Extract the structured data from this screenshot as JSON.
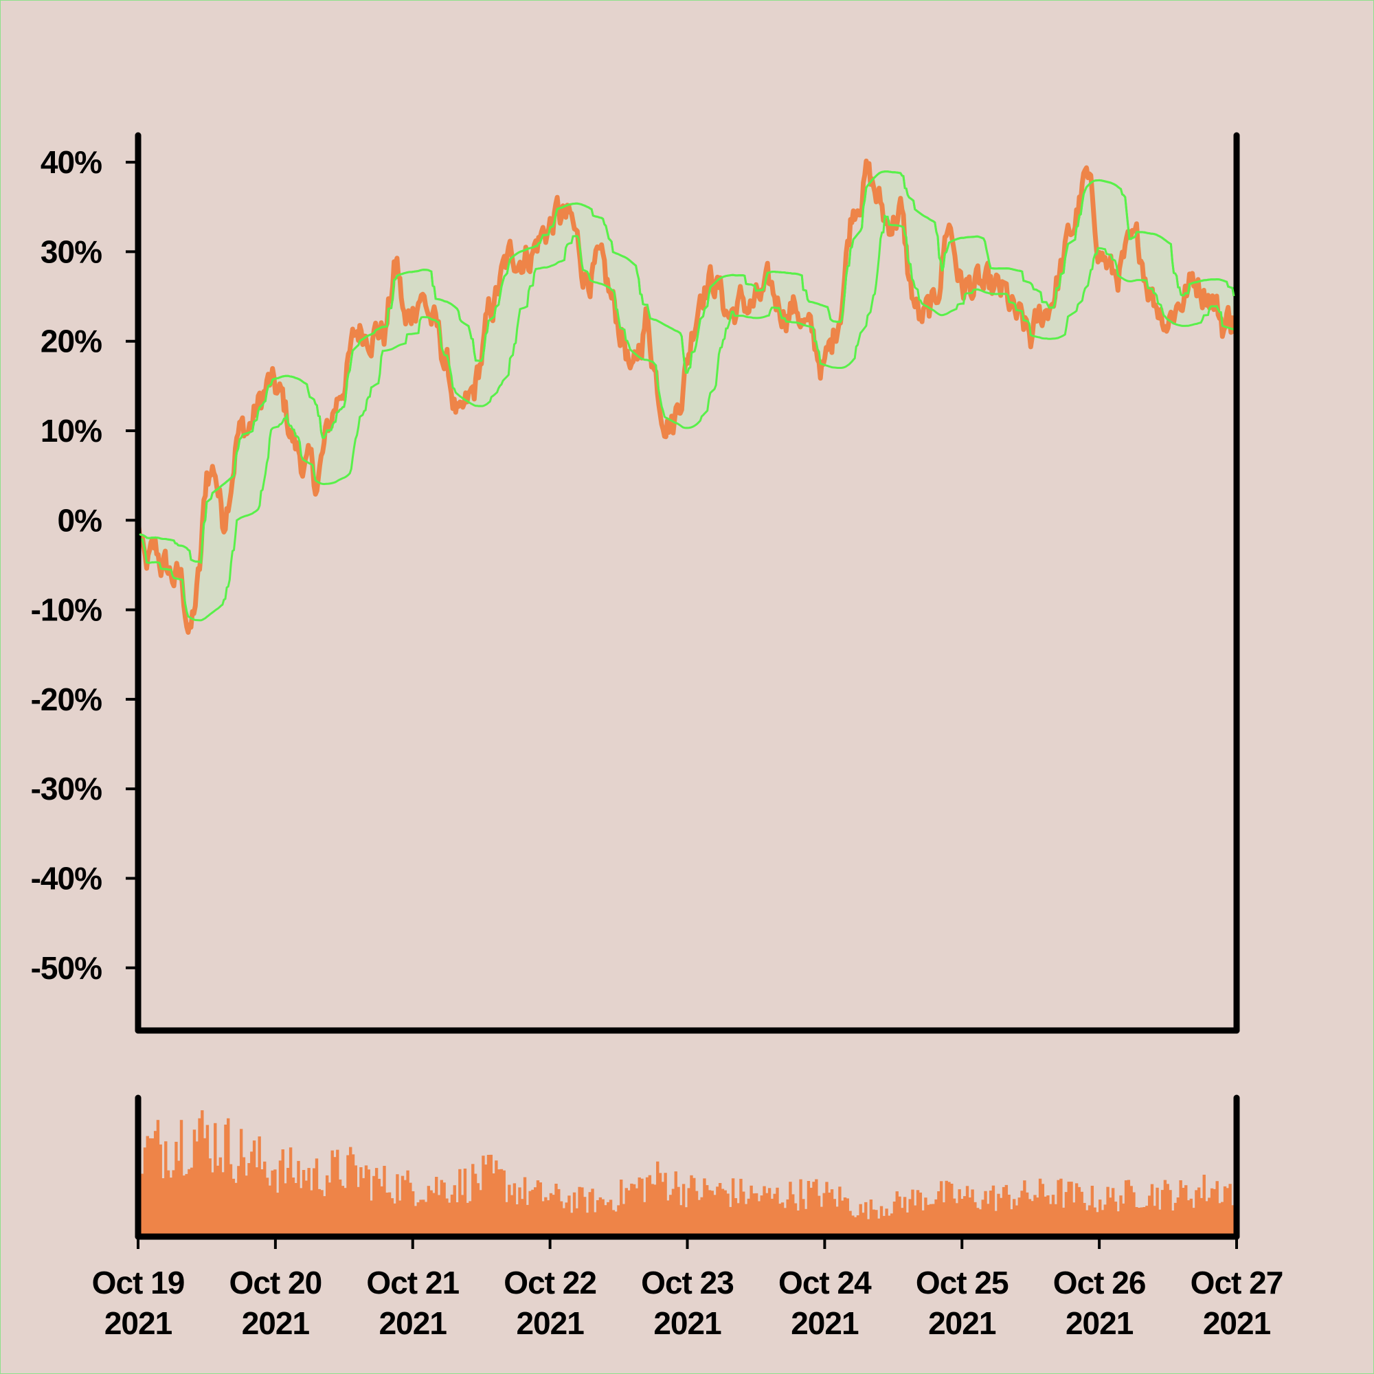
{
  "chart_data": {
    "type": "line",
    "title": "",
    "xlabel": "",
    "ylabel": "",
    "ylim": [
      -57,
      43
    ],
    "y_ticks": [
      "40%",
      "30%",
      "20%",
      "10%",
      "0%",
      "-10%",
      "-20%",
      "-30%",
      "-40%",
      "-50%"
    ],
    "y_tick_values": [
      40,
      30,
      20,
      10,
      0,
      -10,
      -20,
      -30,
      -40,
      -50
    ],
    "x_ticks": [
      {
        "line1": "Oct 19",
        "line2": "2021"
      },
      {
        "line1": "Oct 20",
        "line2": "2021"
      },
      {
        "line1": "Oct 21",
        "line2": "2021"
      },
      {
        "line1": "Oct 22",
        "line2": "2021"
      },
      {
        "line1": "Oct 23",
        "line2": "2021"
      },
      {
        "line1": "Oct 24",
        "line2": "2021"
      },
      {
        "line1": "Oct 25",
        "line2": "2021"
      },
      {
        "line1": "Oct 26",
        "line2": "2021"
      },
      {
        "line1": "Oct 27",
        "line2": "2021"
      }
    ],
    "x_range_days": [
      0,
      8
    ],
    "grid": false,
    "legend": "none",
    "colors": {
      "price_line": "#ee8448",
      "band_lines": "#59f04a",
      "band_fill": "#d5dcc6",
      "volume_bars": "#ee8448",
      "background": "#e4d3cd",
      "axes": "#000000"
    },
    "price_anchors": [
      [
        0,
        0
      ],
      [
        0.05,
        -6
      ],
      [
        0.13,
        -4
      ],
      [
        0.22,
        -6
      ],
      [
        0.32,
        -7
      ],
      [
        0.38,
        -13
      ],
      [
        0.45,
        -6
      ],
      [
        0.5,
        5
      ],
      [
        0.56,
        6
      ],
      [
        0.62,
        0
      ],
      [
        0.72,
        10
      ],
      [
        0.8,
        10
      ],
      [
        0.95,
        15
      ],
      [
        1.05,
        13
      ],
      [
        1.15,
        8
      ],
      [
        1.3,
        4
      ],
      [
        1.42,
        12
      ],
      [
        1.5,
        16
      ],
      [
        1.6,
        21
      ],
      [
        1.7,
        22
      ],
      [
        1.8,
        21
      ],
      [
        1.88,
        29
      ],
      [
        1.95,
        21
      ],
      [
        2.05,
        26
      ],
      [
        2.15,
        22
      ],
      [
        2.25,
        17
      ],
      [
        2.35,
        10
      ],
      [
        2.45,
        14
      ],
      [
        2.55,
        22
      ],
      [
        2.65,
        27
      ],
      [
        2.75,
        30
      ],
      [
        2.85,
        30
      ],
      [
        2.95,
        32
      ],
      [
        3.05,
        34
      ],
      [
        3.15,
        33
      ],
      [
        3.25,
        28
      ],
      [
        3.35,
        28
      ],
      [
        3.45,
        24
      ],
      [
        3.55,
        20
      ],
      [
        3.6,
        15
      ],
      [
        3.7,
        23
      ],
      [
        3.8,
        14
      ],
      [
        3.9,
        11
      ],
      [
        4.0,
        18
      ],
      [
        4.1,
        27
      ],
      [
        4.2,
        27
      ],
      [
        4.3,
        23
      ],
      [
        4.4,
        24
      ],
      [
        4.5,
        24
      ],
      [
        4.6,
        25
      ],
      [
        4.7,
        24
      ],
      [
        4.8,
        24
      ],
      [
        4.9,
        20
      ],
      [
        5.0,
        17
      ],
      [
        5.05,
        19
      ],
      [
        5.12,
        25
      ],
      [
        5.2,
        35
      ],
      [
        5.3,
        39
      ],
      [
        5.38,
        36
      ],
      [
        5.45,
        33
      ],
      [
        5.55,
        35
      ],
      [
        5.62,
        26
      ],
      [
        5.7,
        22
      ],
      [
        5.8,
        23
      ],
      [
        5.9,
        34
      ],
      [
        6.0,
        26
      ],
      [
        6.1,
        26
      ],
      [
        6.2,
        25
      ],
      [
        6.3,
        25
      ],
      [
        6.4,
        22
      ],
      [
        6.5,
        20
      ],
      [
        6.6,
        23
      ],
      [
        6.7,
        27
      ],
      [
        6.8,
        32
      ],
      [
        6.9,
        38
      ],
      [
        7.0,
        31
      ],
      [
        7.1,
        27
      ],
      [
        7.2,
        29
      ],
      [
        7.3,
        30
      ],
      [
        7.4,
        25
      ],
      [
        7.5,
        23
      ],
      [
        7.6,
        25
      ],
      [
        7.7,
        27
      ],
      [
        7.8,
        26
      ],
      [
        7.9,
        22
      ],
      [
        7.98,
        23
      ]
    ],
    "volume_level_anchors": [
      [
        0,
        0.72
      ],
      [
        0.35,
        0.88
      ],
      [
        0.55,
        0.82
      ],
      [
        0.8,
        0.66
      ],
      [
        1.0,
        0.58
      ],
      [
        1.25,
        0.52
      ],
      [
        1.5,
        0.58
      ],
      [
        1.75,
        0.46
      ],
      [
        2.0,
        0.42
      ],
      [
        2.3,
        0.44
      ],
      [
        2.55,
        0.52
      ],
      [
        2.8,
        0.38
      ],
      [
        3.1,
        0.32
      ],
      [
        3.4,
        0.3
      ],
      [
        3.65,
        0.44
      ],
      [
        3.8,
        0.5
      ],
      [
        4.0,
        0.4
      ],
      [
        4.3,
        0.38
      ],
      [
        4.6,
        0.34
      ],
      [
        4.9,
        0.38
      ],
      [
        5.1,
        0.34
      ],
      [
        5.25,
        0.22
      ],
      [
        5.5,
        0.28
      ],
      [
        5.8,
        0.36
      ],
      [
        6.1,
        0.33
      ],
      [
        6.4,
        0.35
      ],
      [
        6.7,
        0.38
      ],
      [
        7.0,
        0.31
      ],
      [
        7.3,
        0.38
      ],
      [
        7.6,
        0.36
      ],
      [
        7.85,
        0.42
      ],
      [
        8.0,
        0.4
      ]
    ],
    "band_window_hours": 6
  }
}
